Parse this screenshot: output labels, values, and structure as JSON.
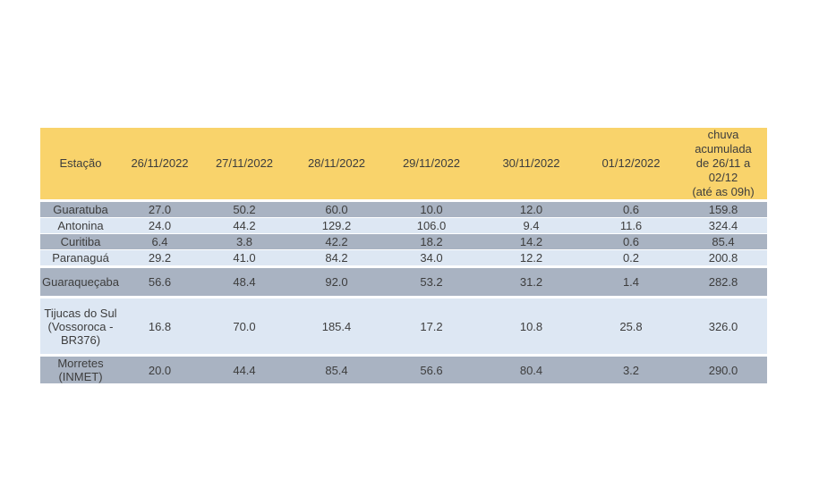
{
  "table": {
    "colors": {
      "header_bg": "#f9d36b",
      "band_dark": "#a9b3c2",
      "band_light": "#dde7f3",
      "text": "#3d3d3d"
    },
    "headers": [
      "Estação",
      "26/11/2022",
      "27/11/2022",
      "28/11/2022",
      "29/11/2022",
      "30/11/2022",
      "01/12/2022",
      "chuva acumulada\nde 26/11 a 02/12\n(até as 09h)"
    ],
    "rows": [
      {
        "station": "Guaratuba",
        "values": [
          "27.0",
          "50.2",
          "60.0",
          "10.0",
          "12.0",
          "0.6",
          "159.8"
        ]
      },
      {
        "station": "Antonina",
        "values": [
          "24.0",
          "44.2",
          "129.2",
          "106.0",
          "9.4",
          "11.6",
          "324.4"
        ]
      },
      {
        "station": "Curitiba",
        "values": [
          "6.4",
          "3.8",
          "42.2",
          "18.2",
          "14.2",
          "0.6",
          "85.4"
        ]
      },
      {
        "station": "Paranaguá",
        "values": [
          "29.2",
          "41.0",
          "84.2",
          "34.0",
          "12.2",
          "0.2",
          "200.8"
        ]
      },
      {
        "station": "Guaraqueçaba",
        "values": [
          "56.6",
          "48.4",
          "92.0",
          "53.2",
          "31.2",
          "1.4",
          "282.8"
        ]
      },
      {
        "station": "Tijucas do Sul\n(Vossoroca -\nBR376)",
        "values": [
          "16.8",
          "70.0",
          "185.4",
          "17.2",
          "10.8",
          "25.8",
          "326.0"
        ]
      },
      {
        "station": "Morretes\n(INMET)",
        "values": [
          "20.0",
          "44.4",
          "85.4",
          "56.6",
          "80.4",
          "3.2",
          "290.0"
        ]
      }
    ]
  },
  "chart_data": {
    "type": "table",
    "title": "Chuva diária por estação (mm), 26/11/2022 a 01/12/2022, com acumulado de 26/11 a 02/12 (até as 09h)",
    "columns": [
      "Estação",
      "26/11/2022",
      "27/11/2022",
      "28/11/2022",
      "29/11/2022",
      "30/11/2022",
      "01/12/2022",
      "chuva acumulada de 26/11 a 02/12 (até as 09h)"
    ],
    "rows": [
      [
        "Guaratuba",
        27.0,
        50.2,
        60.0,
        10.0,
        12.0,
        0.6,
        159.8
      ],
      [
        "Antonina",
        24.0,
        44.2,
        129.2,
        106.0,
        9.4,
        11.6,
        324.4
      ],
      [
        "Curitiba",
        6.4,
        3.8,
        42.2,
        18.2,
        14.2,
        0.6,
        85.4
      ],
      [
        "Paranaguá",
        29.2,
        41.0,
        84.2,
        34.0,
        12.2,
        0.2,
        200.8
      ],
      [
        "Guaraqueçaba",
        56.6,
        48.4,
        92.0,
        53.2,
        31.2,
        1.4,
        282.8
      ],
      [
        "Tijucas do Sul (Vossoroca - BR376)",
        16.8,
        70.0,
        185.4,
        17.2,
        10.8,
        25.8,
        326.0
      ],
      [
        "Morretes (INMET)",
        20.0,
        44.4,
        85.4,
        56.6,
        80.4,
        3.2,
        290.0
      ]
    ]
  }
}
